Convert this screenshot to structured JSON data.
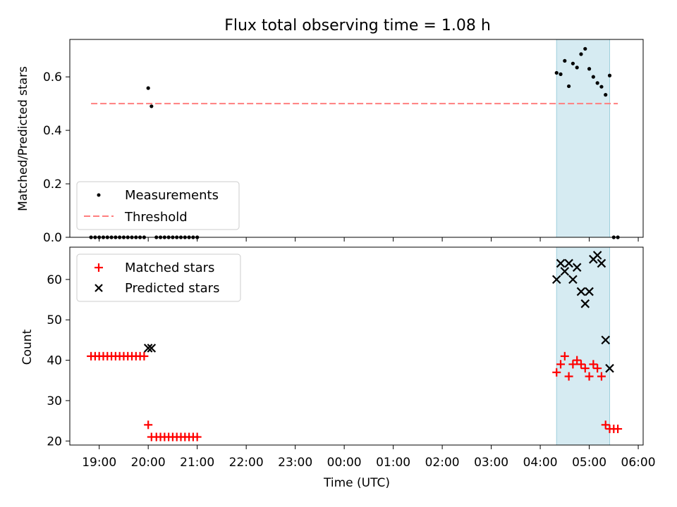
{
  "chart_data": [
    {
      "type": "scatter",
      "title": "Flux total observing time = 1.08 h",
      "xlabel": "",
      "ylabel": "Matched/Predicted stars",
      "ylim": [
        0.0,
        0.74
      ],
      "yticks": [
        "0.0",
        "0.2",
        "0.4",
        "0.6"
      ],
      "grid": false,
      "legend": "lower-left",
      "series": [
        {
          "name": "Measurements",
          "color": "#000000",
          "marker": "dot",
          "points": [
            [
              "18:50",
              0.0
            ],
            [
              "18:55",
              0.0
            ],
            [
              "19:00",
              0.0
            ],
            [
              "19:05",
              0.0
            ],
            [
              "19:10",
              0.0
            ],
            [
              "19:15",
              0.0
            ],
            [
              "19:20",
              0.0
            ],
            [
              "19:25",
              0.0
            ],
            [
              "19:30",
              0.0
            ],
            [
              "19:35",
              0.0
            ],
            [
              "19:40",
              0.0
            ],
            [
              "19:45",
              0.0
            ],
            [
              "19:50",
              0.0
            ],
            [
              "19:55",
              0.0
            ],
            [
              "20:00",
              0.558
            ],
            [
              "20:04",
              0.49
            ],
            [
              "20:10",
              0.0
            ],
            [
              "20:15",
              0.0
            ],
            [
              "20:20",
              0.0
            ],
            [
              "20:25",
              0.0
            ],
            [
              "20:30",
              0.0
            ],
            [
              "20:35",
              0.0
            ],
            [
              "20:40",
              0.0
            ],
            [
              "20:45",
              0.0
            ],
            [
              "20:50",
              0.0
            ],
            [
              "20:55",
              0.0
            ],
            [
              "21:00",
              0.0
            ],
            [
              "04:20",
              0.615
            ],
            [
              "04:25",
              0.61
            ],
            [
              "04:30",
              0.66
            ],
            [
              "04:35",
              0.565
            ],
            [
              "04:40",
              0.65
            ],
            [
              "04:45",
              0.635
            ],
            [
              "04:50",
              0.685
            ],
            [
              "04:55",
              0.705
            ],
            [
              "05:00",
              0.63
            ],
            [
              "05:05",
              0.6
            ],
            [
              "05:10",
              0.577
            ],
            [
              "05:15",
              0.563
            ],
            [
              "05:20",
              0.533
            ],
            [
              "05:25",
              0.605
            ],
            [
              "05:30",
              0.0
            ],
            [
              "05:35",
              0.0
            ]
          ]
        },
        {
          "name": "Threshold",
          "color": "#ff7f7f",
          "line": "dashed",
          "points": [
            [
              "18:50",
              0.5
            ],
            [
              "05:35",
              0.5
            ]
          ]
        }
      ],
      "shaded_span": {
        "start": "04:20",
        "end": "05:25",
        "color": "#add8e6"
      }
    },
    {
      "type": "scatter",
      "xlabel": "Time (UTC)",
      "ylabel": "Count",
      "ylim": [
        19,
        68
      ],
      "yticks": [
        "20",
        "30",
        "40",
        "50",
        "60"
      ],
      "xticks": [
        "19:00",
        "20:00",
        "21:00",
        "22:00",
        "23:00",
        "00:00",
        "01:00",
        "02:00",
        "03:00",
        "04:00",
        "05:00",
        "06:00"
      ],
      "grid": false,
      "legend": "upper-left",
      "series": [
        {
          "name": "Matched stars",
          "color": "#ff0000",
          "marker": "plus",
          "points": [
            [
              "18:50",
              41
            ],
            [
              "18:55",
              41
            ],
            [
              "19:00",
              41
            ],
            [
              "19:05",
              41
            ],
            [
              "19:10",
              41
            ],
            [
              "19:15",
              41
            ],
            [
              "19:20",
              41
            ],
            [
              "19:25",
              41
            ],
            [
              "19:30",
              41
            ],
            [
              "19:35",
              41
            ],
            [
              "19:40",
              41
            ],
            [
              "19:45",
              41
            ],
            [
              "19:50",
              41
            ],
            [
              "19:55",
              41
            ],
            [
              "20:00",
              24
            ],
            [
              "20:04",
              21
            ],
            [
              "20:10",
              21
            ],
            [
              "20:15",
              21
            ],
            [
              "20:20",
              21
            ],
            [
              "20:25",
              21
            ],
            [
              "20:30",
              21
            ],
            [
              "20:35",
              21
            ],
            [
              "20:40",
              21
            ],
            [
              "20:45",
              21
            ],
            [
              "20:50",
              21
            ],
            [
              "20:55",
              21
            ],
            [
              "21:00",
              21
            ],
            [
              "04:20",
              37
            ],
            [
              "04:25",
              39
            ],
            [
              "04:30",
              41
            ],
            [
              "04:35",
              36
            ],
            [
              "04:40",
              39
            ],
            [
              "04:45",
              40
            ],
            [
              "04:50",
              39
            ],
            [
              "04:55",
              38
            ],
            [
              "05:00",
              36
            ],
            [
              "05:05",
              39
            ],
            [
              "05:10",
              38
            ],
            [
              "05:15",
              36
            ],
            [
              "05:20",
              24
            ],
            [
              "05:25",
              23
            ],
            [
              "05:30",
              23
            ],
            [
              "05:35",
              23
            ]
          ]
        },
        {
          "name": "Predicted stars",
          "color": "#000000",
          "marker": "x",
          "points": [
            [
              "20:00",
              43
            ],
            [
              "20:04",
              43
            ],
            [
              "04:20",
              60
            ],
            [
              "04:25",
              64
            ],
            [
              "04:30",
              62
            ],
            [
              "04:35",
              64
            ],
            [
              "04:40",
              60
            ],
            [
              "04:45",
              63
            ],
            [
              "04:50",
              57
            ],
            [
              "04:55",
              54
            ],
            [
              "05:00",
              57
            ],
            [
              "05:05",
              65
            ],
            [
              "05:10",
              66
            ],
            [
              "05:15",
              64
            ],
            [
              "05:20",
              45
            ],
            [
              "05:25",
              38
            ]
          ]
        }
      ],
      "shaded_span": {
        "start": "04:20",
        "end": "05:25",
        "color": "#add8e6"
      }
    }
  ]
}
